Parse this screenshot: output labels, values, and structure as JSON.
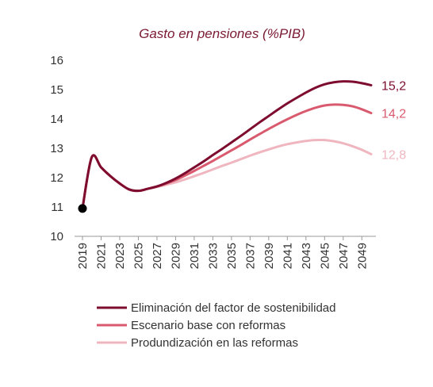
{
  "chart_data": {
    "type": "line",
    "title": "Gasto en pensiones (%PIB)",
    "xlabel": "",
    "ylabel": "",
    "xlim": [
      2019,
      2050
    ],
    "ylim": [
      10,
      16
    ],
    "y_ticks": [
      "10",
      "11",
      "12",
      "13",
      "14",
      "15",
      "16"
    ],
    "x_ticks": [
      "2019",
      "2021",
      "2023",
      "2025",
      "2027",
      "2029",
      "2031",
      "2033",
      "2035",
      "2037",
      "2039",
      "2041",
      "2043",
      "2045",
      "2047",
      "2049"
    ],
    "grid": false,
    "legend_position": "bottom",
    "start_point": {
      "x": 2019,
      "y": 10.95
    },
    "series": [
      {
        "name": "Eliminación del factor de sostenibilidad",
        "color": "#7d0c2e",
        "end_label": "15,2",
        "x": [
          2019,
          2020,
          2021,
          2022,
          2023,
          2024,
          2025,
          2026,
          2027,
          2028,
          2029,
          2030,
          2031,
          2032,
          2033,
          2034,
          2035,
          2036,
          2037,
          2038,
          2039,
          2040,
          2041,
          2042,
          2043,
          2044,
          2045,
          2046,
          2047,
          2048,
          2049,
          2050
        ],
        "y": [
          10.95,
          12.7,
          12.35,
          12.05,
          11.8,
          11.6,
          11.55,
          11.62,
          11.7,
          11.82,
          11.97,
          12.15,
          12.35,
          12.55,
          12.77,
          12.98,
          13.2,
          13.42,
          13.65,
          13.88,
          14.1,
          14.32,
          14.53,
          14.72,
          14.9,
          15.06,
          15.18,
          15.25,
          15.28,
          15.27,
          15.22,
          15.15
        ]
      },
      {
        "name": "Escenario base con reformas",
        "color": "#d95a6e",
        "end_label": "14,2",
        "x": [
          2019,
          2020,
          2021,
          2022,
          2023,
          2024,
          2025,
          2026,
          2027,
          2028,
          2029,
          2030,
          2031,
          2032,
          2033,
          2034,
          2035,
          2036,
          2037,
          2038,
          2039,
          2040,
          2041,
          2042,
          2043,
          2044,
          2045,
          2046,
          2047,
          2048,
          2049,
          2050
        ],
        "y": [
          10.95,
          12.7,
          12.35,
          12.05,
          11.8,
          11.6,
          11.55,
          11.62,
          11.7,
          11.8,
          11.92,
          12.07,
          12.23,
          12.4,
          12.57,
          12.75,
          12.93,
          13.11,
          13.3,
          13.48,
          13.66,
          13.83,
          13.99,
          14.14,
          14.27,
          14.38,
          14.46,
          14.49,
          14.48,
          14.43,
          14.33,
          14.2
        ]
      },
      {
        "name": "Produndización en las reformas",
        "color": "#f0b6bf",
        "end_label": "12,8",
        "x": [
          2019,
          2020,
          2021,
          2022,
          2023,
          2024,
          2025,
          2026,
          2027,
          2028,
          2029,
          2030,
          2031,
          2032,
          2033,
          2034,
          2035,
          2036,
          2037,
          2038,
          2039,
          2040,
          2041,
          2042,
          2043,
          2044,
          2045,
          2046,
          2047,
          2048,
          2049,
          2050
        ],
        "y": [
          10.95,
          12.7,
          12.35,
          12.05,
          11.8,
          11.6,
          11.55,
          11.62,
          11.68,
          11.76,
          11.84,
          11.94,
          12.05,
          12.16,
          12.28,
          12.4,
          12.51,
          12.63,
          12.75,
          12.86,
          12.96,
          13.06,
          13.14,
          13.2,
          13.25,
          13.28,
          13.28,
          13.24,
          13.17,
          13.07,
          12.95,
          12.8
        ]
      }
    ]
  }
}
